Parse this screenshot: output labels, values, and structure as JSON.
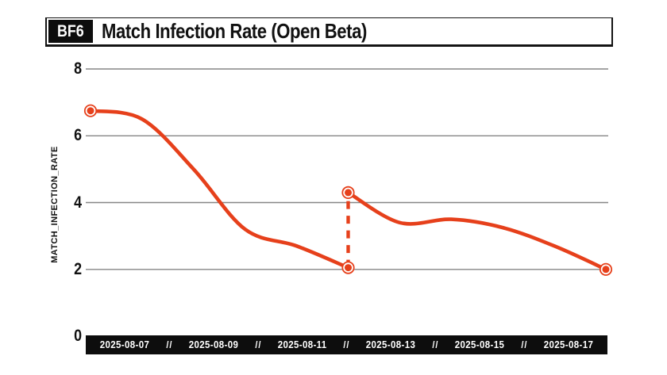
{
  "header": {
    "logo": "BF6",
    "title": "Match Infection Rate (Open Beta)"
  },
  "chart_data": {
    "type": "line",
    "title": "BF6 Match Infection Rate (Open Beta)",
    "xlabel": "",
    "ylabel": "MATCH_INFECTION_RATE",
    "ylim": [
      0,
      8
    ],
    "yticks": [
      8,
      6,
      4,
      2,
      0
    ],
    "grid_yticks": [
      8,
      6,
      4,
      2
    ],
    "grid": "horizontal-only",
    "legend": "none",
    "x": [
      "2025-08-07",
      "2025-08-08",
      "2025-08-09",
      "2025-08-10",
      "2025-08-11",
      "2025-08-12",
      "2025-08-13",
      "2025-08-14",
      "2025-08-15",
      "2025-08-16",
      "2025-08-17"
    ],
    "x_axis_labels": [
      "2025-08-07",
      "2025-08-09",
      "2025-08-11",
      "2025-08-13",
      "2025-08-15",
      "2025-08-17"
    ],
    "x_axis_separator": "//",
    "segments": [
      {
        "day_indices": [
          0,
          1,
          2,
          3,
          4,
          5
        ],
        "values": [
          6.75,
          6.5,
          5.0,
          3.2,
          2.7,
          2.05
        ]
      },
      {
        "day_indices": [
          5,
          6,
          7,
          8,
          9,
          10
        ],
        "values": [
          4.3,
          3.4,
          3.5,
          3.25,
          2.7,
          2.0
        ]
      }
    ],
    "gap_connector": {
      "day_index": 5,
      "from": 2.05,
      "to": 4.3,
      "style": "dashed"
    },
    "styles": {
      "line_color": "#e6401b",
      "grid_color": "#868686",
      "axis_bar_bg": "#0d0d0d",
      "axis_bar_text": "#ffffff",
      "ink": "#111111"
    }
  }
}
